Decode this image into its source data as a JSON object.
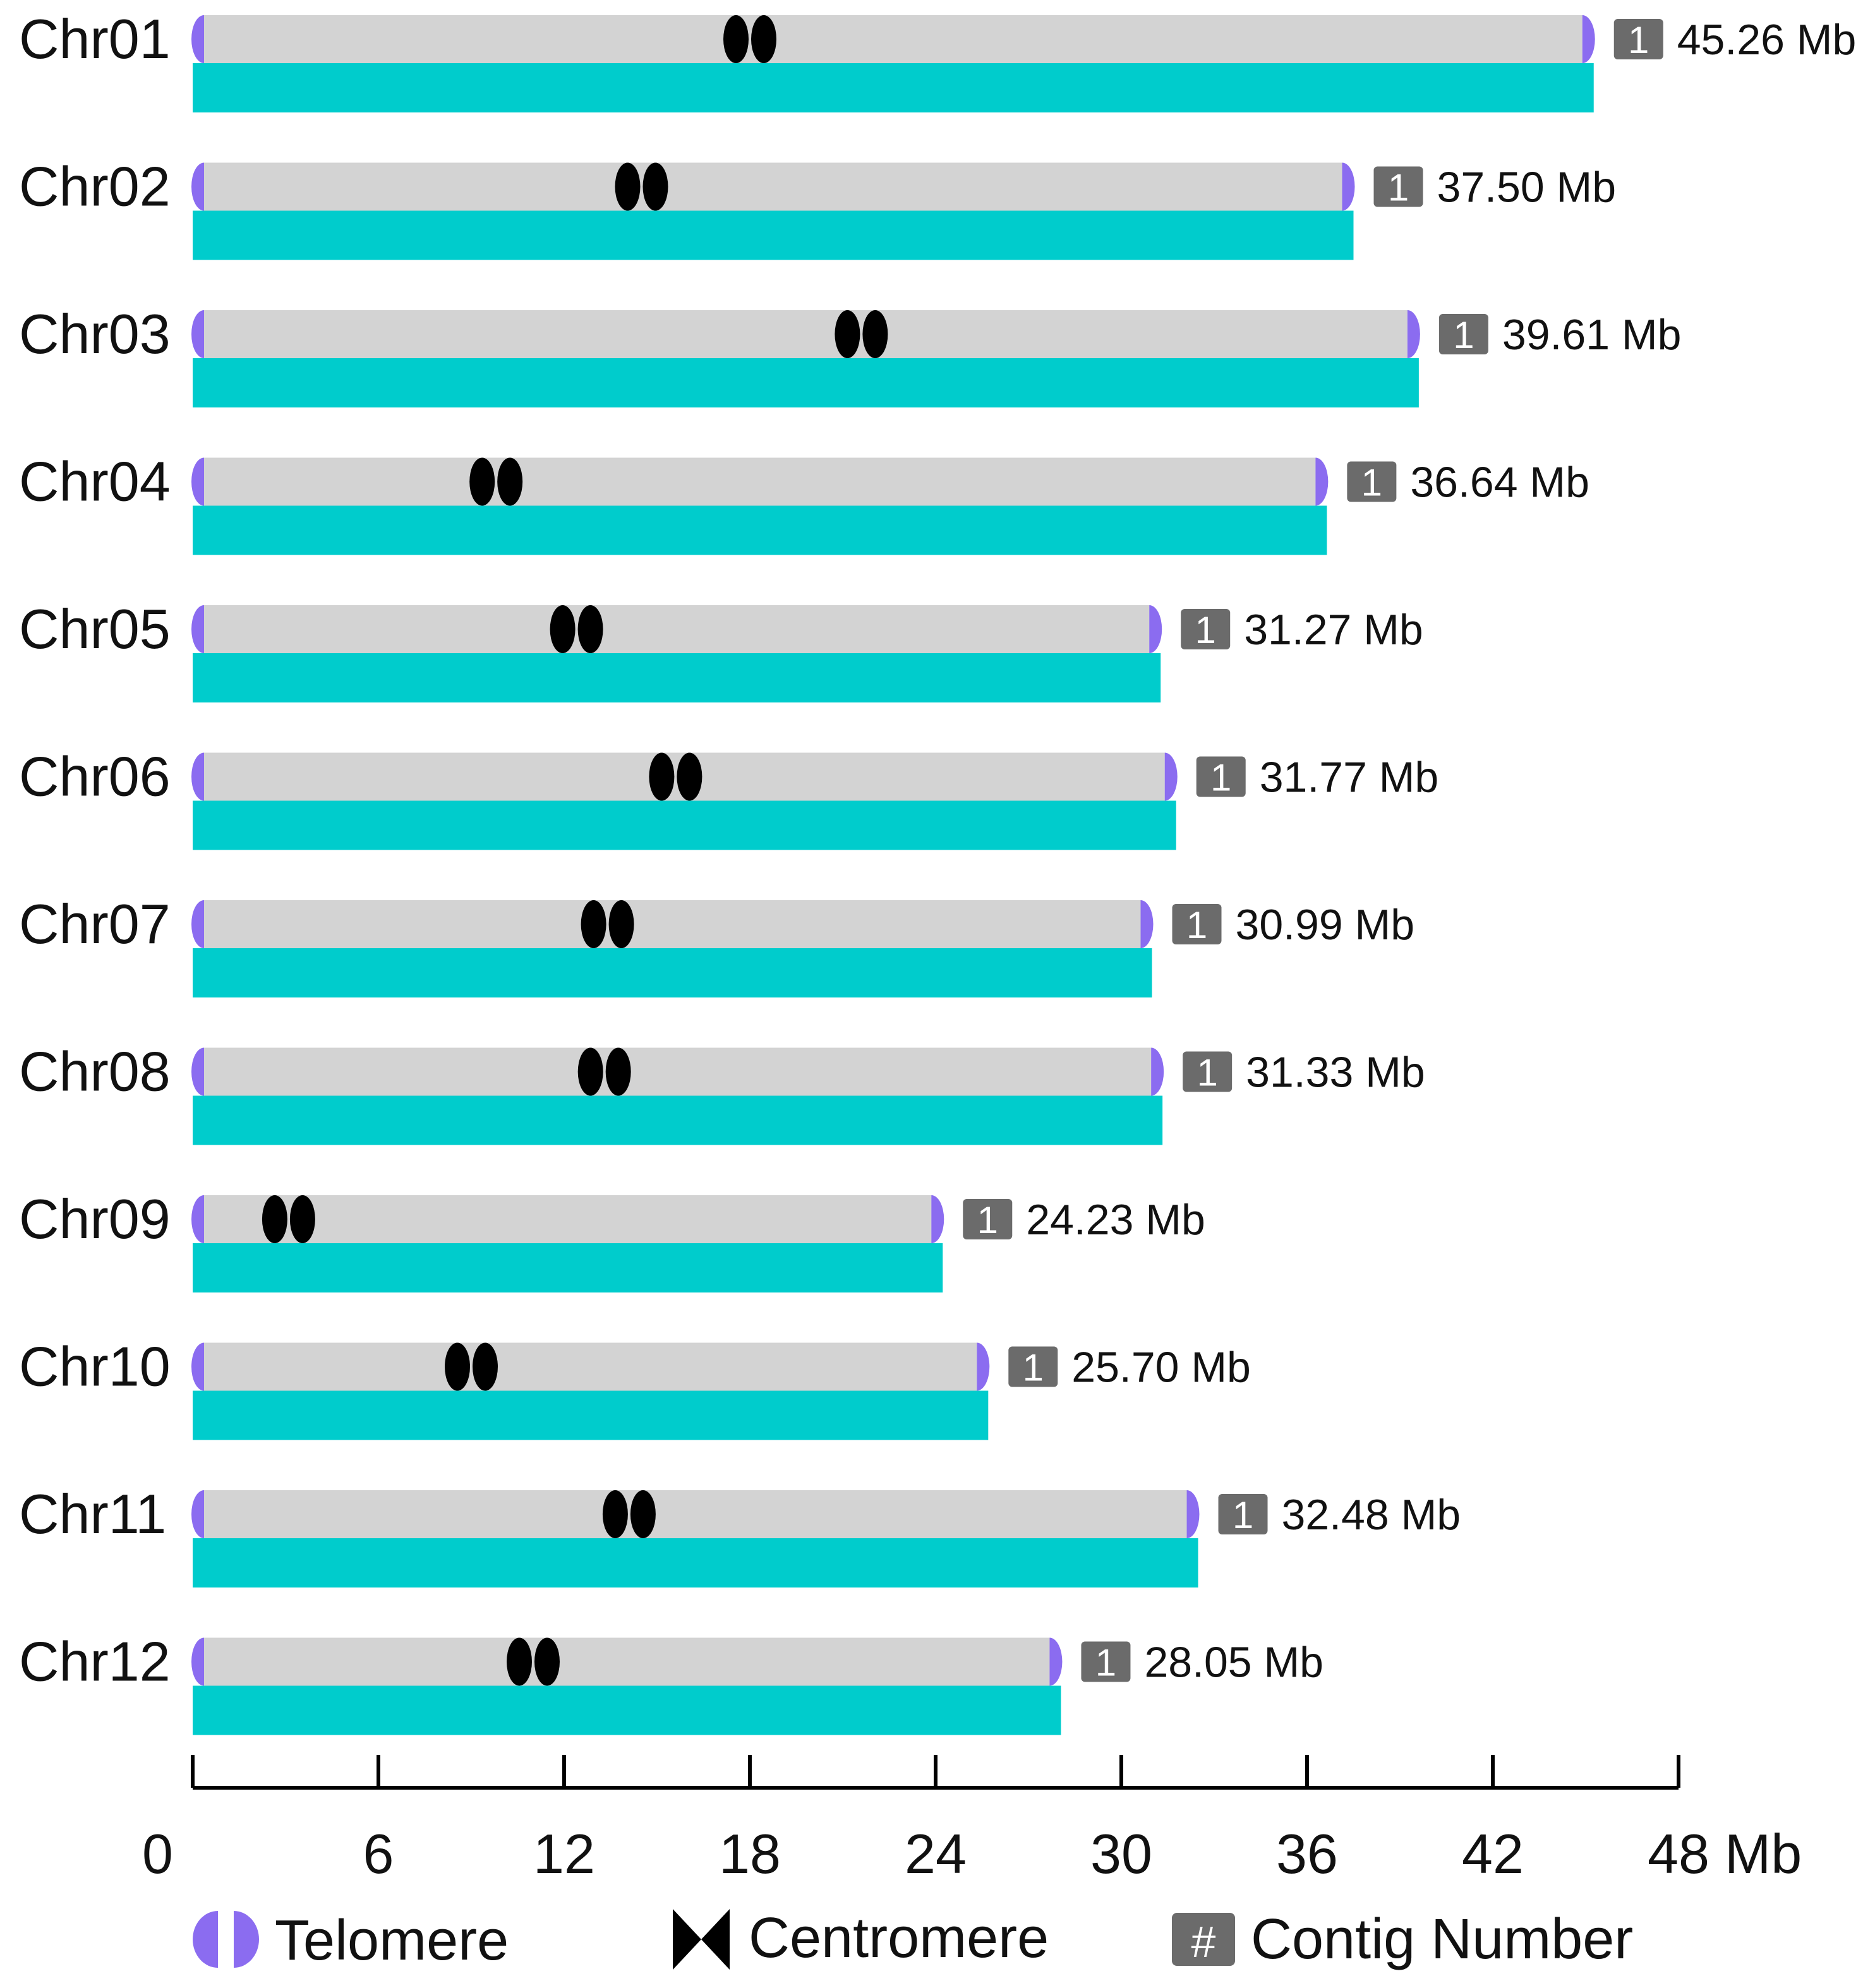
{
  "chart_data": {
    "type": "chromosome-ideogram",
    "unit": "Mb",
    "xlim": [
      0,
      48
    ],
    "x_ticks": [
      "0",
      "6",
      "12",
      "18",
      "24",
      "30",
      "36",
      "42",
      "48"
    ],
    "x_unit_label": "Mb",
    "chromosomes": [
      {
        "name": "Chr01",
        "length": 45.26,
        "size_label": "45.26 Mb",
        "contigs": "1",
        "centromere": 18.0
      },
      {
        "name": "Chr02",
        "length": 37.5,
        "size_label": "37.50 Mb",
        "contigs": "1",
        "centromere": 14.5
      },
      {
        "name": "Chr03",
        "length": 39.61,
        "size_label": "39.61 Mb",
        "contigs": "1",
        "centromere": 21.6
      },
      {
        "name": "Chr04",
        "length": 36.64,
        "size_label": "36.64 Mb",
        "contigs": "1",
        "centromere": 9.8
      },
      {
        "name": "Chr05",
        "length": 31.27,
        "size_label": "31.27 Mb",
        "contigs": "1",
        "centromere": 12.4
      },
      {
        "name": "Chr06",
        "length": 31.77,
        "size_label": "31.77 Mb",
        "contigs": "1",
        "centromere": 15.6
      },
      {
        "name": "Chr07",
        "length": 30.99,
        "size_label": "30.99 Mb",
        "contigs": "1",
        "centromere": 13.4
      },
      {
        "name": "Chr08",
        "length": 31.33,
        "size_label": "31.33 Mb",
        "contigs": "1",
        "centromere": 13.3
      },
      {
        "name": "Chr09",
        "length": 24.23,
        "size_label": "24.23 Mb",
        "contigs": "1",
        "centromere": 3.1
      },
      {
        "name": "Chr10",
        "length": 25.7,
        "size_label": "25.70 Mb",
        "contigs": "1",
        "centromere": 9.0
      },
      {
        "name": "Chr11",
        "length": 32.48,
        "size_label": "32.48 Mb",
        "contigs": "1",
        "centromere": 14.1
      },
      {
        "name": "Chr12",
        "length": 28.05,
        "size_label": "28.05 Mb",
        "contigs": "1",
        "centromere": 11.0
      }
    ],
    "legend": {
      "telomere": "Telomere",
      "centromere": "Centromere",
      "contig_symbol": "#",
      "contig": "Contig Number"
    },
    "colors": {
      "chromosome": "#d3d3d3",
      "bar": "#00cccc",
      "telomere": "#8b6cf0",
      "centromere": "#000000",
      "contig_box": "#6b6b6b",
      "text": "#111111"
    }
  }
}
